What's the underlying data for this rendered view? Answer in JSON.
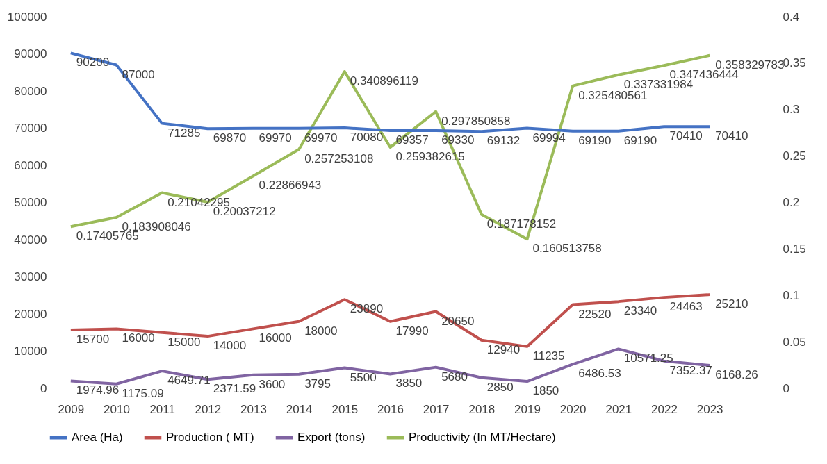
{
  "chart_data": {
    "type": "line",
    "categories": [
      "2009",
      "2010",
      "2011",
      "2012",
      "2013",
      "2014",
      "2015",
      "2016",
      "2017",
      "2018",
      "2019",
      "2020",
      "2021",
      "2022",
      "2023"
    ],
    "series": [
      {
        "name": "Area (Ha)",
        "color": "#4472c4",
        "values": [
          90200,
          87000,
          71285,
          69870,
          69970,
          69970,
          70080,
          69357,
          69330,
          69132,
          69994,
          69190,
          69190,
          70410,
          70410
        ]
      },
      {
        "name": "Production ( MT)",
        "color": "#c0504d",
        "values": [
          15700,
          16000,
          15000,
          14000,
          16000,
          18000,
          23890,
          17990,
          20650,
          12940,
          11235,
          22520,
          23340,
          24463,
          25210
        ]
      },
      {
        "name": "Export (tons)",
        "color": "#8064a2",
        "values": [
          1974.96,
          1175.09,
          4649.71,
          2371.59,
          3600,
          3795,
          5500,
          3850,
          5680,
          2850,
          1850,
          6486.53,
          10571.25,
          7352.37,
          6168.26
        ]
      },
      {
        "name": "Productivity (In MT/Hectare)",
        "color": "#9bbb59",
        "axis": "y2",
        "values": [
          0.17405765,
          0.183908046,
          0.21042295,
          0.20037212,
          0.22866943,
          0.257253108,
          0.340896119,
          0.259382615,
          0.297850858,
          0.187178152,
          0.160513758,
          0.325480561,
          0.337331984,
          0.347436444,
          0.358329783
        ]
      }
    ],
    "ylim": [
      0,
      100000
    ],
    "yticks": [
      0,
      10000,
      20000,
      30000,
      40000,
      50000,
      60000,
      70000,
      80000,
      90000,
      100000
    ],
    "y2lim": [
      0,
      0.4
    ],
    "y2ticks": [
      0,
      0.05,
      0.1,
      0.15,
      0.2,
      0.25,
      0.3,
      0.35,
      0.4
    ],
    "data_labels": true,
    "legend": "bottom",
    "grid": false,
    "marker": "none",
    "line_style": "solid"
  }
}
